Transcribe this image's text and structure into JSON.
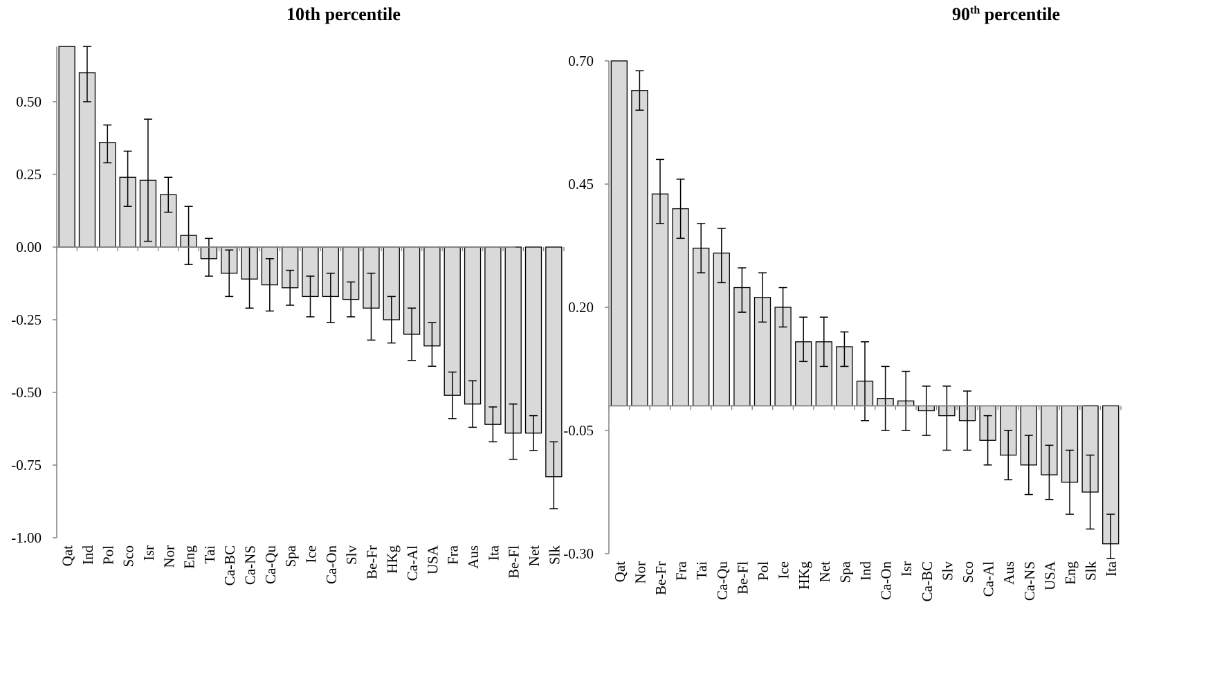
{
  "chart_data": [
    {
      "type": "bar",
      "title": "10th percentile",
      "title_main": "10th percentile",
      "categories": [
        "Qat",
        "Ind",
        "Pol",
        "Sco",
        "Isr",
        "Nor",
        "Eng",
        "Tai",
        "Ca-BC",
        "Ca-NS",
        "Ca-Qu",
        "Spa",
        "Ice",
        "Ca-On",
        "Slv",
        "Be-Fr",
        "HKg",
        "Ca-Al",
        "USA",
        "Fra",
        "Aus",
        "Ita",
        "Be-Fl",
        "Net",
        "Slk"
      ],
      "values": [
        0.8,
        0.6,
        0.36,
        0.24,
        0.23,
        0.18,
        0.04,
        -0.04,
        -0.09,
        -0.11,
        -0.13,
        -0.14,
        -0.17,
        -0.17,
        -0.18,
        -0.21,
        -0.25,
        -0.3,
        -0.34,
        -0.51,
        -0.54,
        -0.61,
        -0.64,
        -0.64,
        -0.79
      ],
      "error_low": [
        null,
        0.5,
        0.29,
        0.14,
        0.02,
        0.12,
        -0.06,
        -0.1,
        -0.17,
        -0.21,
        -0.22,
        -0.2,
        -0.24,
        -0.26,
        -0.24,
        -0.32,
        -0.33,
        -0.39,
        -0.41,
        -0.59,
        -0.62,
        -0.67,
        -0.73,
        -0.7,
        -0.9
      ],
      "error_high": [
        null,
        0.69,
        0.42,
        0.33,
        0.44,
        0.24,
        0.14,
        0.03,
        -0.01,
        0.0,
        -0.04,
        -0.08,
        -0.1,
        -0.09,
        -0.12,
        -0.09,
        -0.17,
        -0.21,
        -0.26,
        -0.43,
        -0.46,
        -0.55,
        -0.54,
        -0.58,
        -0.67
      ],
      "yticks": [
        0.5,
        0.25,
        0.0,
        -0.25,
        -0.5,
        -0.75,
        -1.0
      ],
      "ytick_labels": [
        "0.50",
        "0.25",
        "0.00",
        "-0.25",
        "-0.50",
        "-0.75",
        "-1.00"
      ],
      "ylim": [
        -1.0,
        0.69
      ],
      "xlabel": "",
      "ylabel": "",
      "grid": false,
      "bar_color": "#d9d9d9"
    },
    {
      "type": "bar",
      "title": "90th percentile",
      "title_main": "90",
      "title_sup": "th",
      "title_rest": " percentile",
      "categories": [
        "Qat",
        "Nor",
        "Be-Fr",
        "Fra",
        "Tai",
        "Ca-Qu",
        "Be-Fl",
        "Pol",
        "Ice",
        "HKg",
        "Net",
        "Spa",
        "Ind",
        "Ca-On",
        "Isr",
        "Ca-BC",
        "Slv",
        "Sco",
        "Ca-Al",
        "Aus",
        "Ca-NS",
        "USA",
        "Eng",
        "Slk",
        "Ita"
      ],
      "values": [
        0.74,
        0.64,
        0.43,
        0.4,
        0.32,
        0.31,
        0.24,
        0.22,
        0.2,
        0.13,
        0.13,
        0.12,
        0.05,
        0.015,
        0.01,
        -0.01,
        -0.02,
        -0.03,
        -0.07,
        -0.1,
        -0.12,
        -0.14,
        -0.155,
        -0.175,
        -0.28
      ],
      "error_low": [
        null,
        0.6,
        0.37,
        0.34,
        0.27,
        0.25,
        0.19,
        0.17,
        0.16,
        0.09,
        0.08,
        0.08,
        -0.03,
        -0.05,
        -0.05,
        -0.06,
        -0.09,
        -0.09,
        -0.12,
        -0.15,
        -0.18,
        -0.19,
        -0.22,
        -0.25,
        -0.31
      ],
      "error_high": [
        null,
        0.68,
        0.5,
        0.46,
        0.37,
        0.36,
        0.28,
        0.27,
        0.24,
        0.18,
        0.18,
        0.15,
        0.13,
        0.08,
        0.07,
        0.04,
        0.04,
        0.03,
        -0.02,
        -0.05,
        -0.06,
        -0.08,
        -0.09,
        -0.1,
        -0.22
      ],
      "yticks": [
        0.7,
        0.45,
        0.2,
        -0.05,
        -0.3
      ],
      "ytick_labels": [
        "0.70",
        "0.45",
        "0.20",
        "-0.05",
        "-0.30"
      ],
      "ylim": [
        -0.3,
        0.7
      ],
      "xlabel": "",
      "ylabel": "",
      "grid": false,
      "bar_color": "#d9d9d9"
    }
  ]
}
